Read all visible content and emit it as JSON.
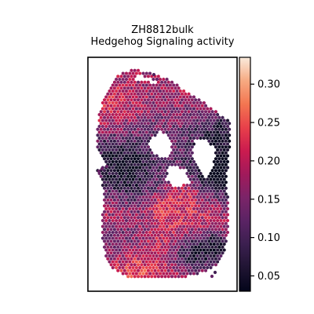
{
  "chart_data": {
    "type": "heatmap",
    "subtype": "spatial-hexbin",
    "title_lines": [
      "ZH8812bulk",
      "Hedgehog Signaling activity"
    ],
    "xlabel": "",
    "ylabel": "",
    "axis_ticks_visible": false,
    "grid": false,
    "colormap": "rocket",
    "colorbar": {
      "position": "right",
      "vmin": 0.03,
      "vmax": 0.335,
      "ticks": [
        0.05,
        0.1,
        0.15,
        0.2,
        0.25,
        0.3
      ],
      "tick_labels": [
        "0.05",
        "0.10",
        "0.15",
        "0.20",
        "0.25",
        "0.30"
      ]
    },
    "colors": {
      "low": "#03051a",
      "mid": "#cb1b4f",
      "high": "#faebdd"
    }
  }
}
